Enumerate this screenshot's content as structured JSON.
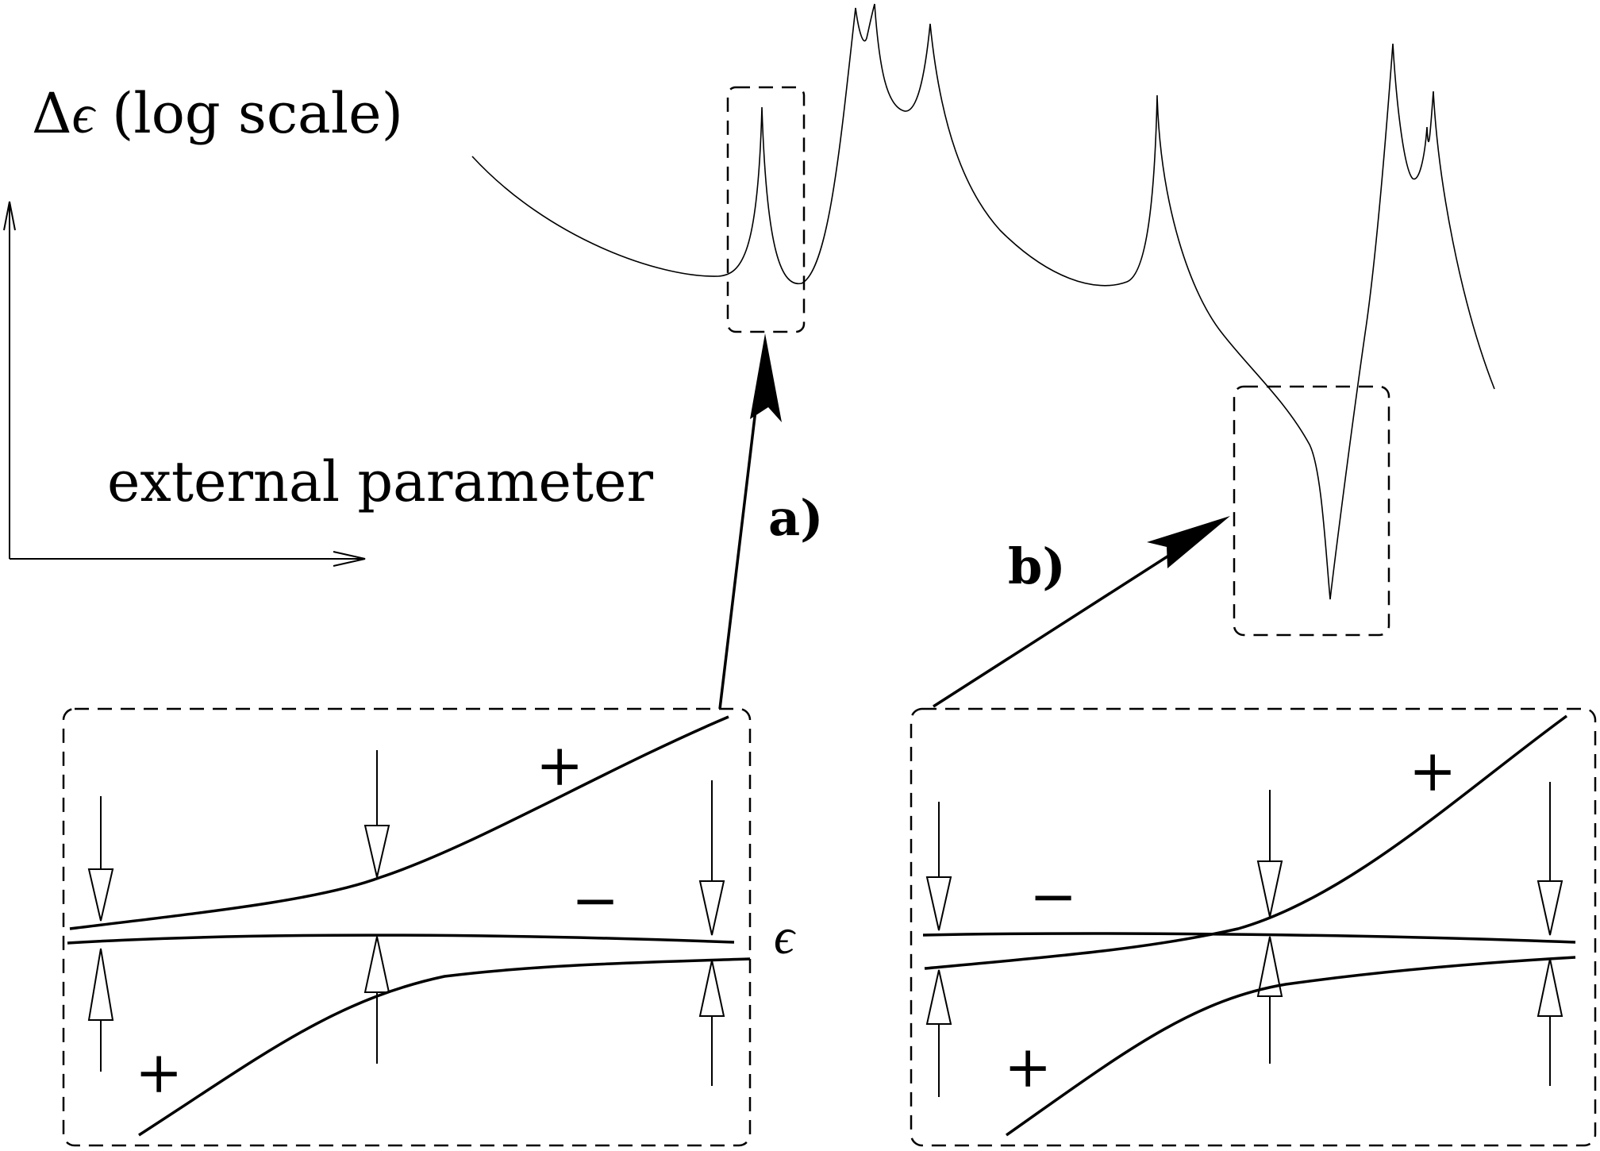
{
  "labels": {
    "delta_symbol": "Δ",
    "epsilon_symbol": "ϵ",
    "y_axis_rest": " (log scale)",
    "x_axis": "external parameter",
    "callout_a": "a)",
    "callout_b": "b)",
    "inset_epsilon": "ϵ",
    "plus": "+",
    "minus": "−"
  },
  "colors": {
    "ink": "#000000",
    "background": "#ffffff"
  }
}
